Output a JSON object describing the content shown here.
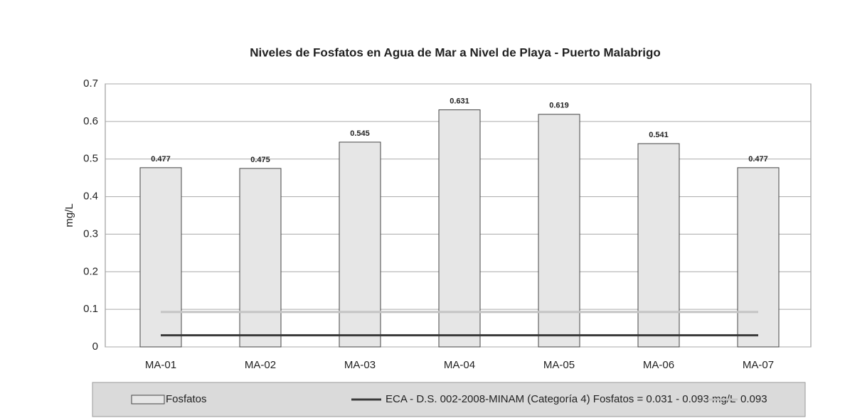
{
  "chart_data": {
    "type": "bar",
    "title": "Niveles de Fosfatos en Agua de Mar a Nivel de Playa - Puerto Malabrigo",
    "y_label": "mg/L",
    "categories": [
      "MA-01",
      "MA-02",
      "MA-03",
      "MA-04",
      "MA-05",
      "MA-06",
      "MA-07"
    ],
    "series": [
      {
        "name": "Fosfatos",
        "type": "bar",
        "color": "#e6e6e6",
        "values": [
          0.477,
          0.475,
          0.545,
          0.631,
          0.619,
          0.541,
          0.477
        ]
      },
      {
        "name": "ECA - D.S. 002-2008-MINAM (Categoría 4) Fosfatos = 0.031 - 0.093 mg/L",
        "type": "line",
        "color": "#3a3a3a",
        "values": [
          0.031,
          0.031,
          0.031,
          0.031,
          0.031,
          0.031,
          0.031
        ]
      },
      {
        "name": "0.093",
        "type": "line",
        "color": "#c4c4c4",
        "values": [
          0.093,
          0.093,
          0.093,
          0.093,
          0.093,
          0.093,
          0.093
        ]
      }
    ],
    "ylim": [
      0,
      0.7
    ],
    "yticks": [
      0,
      0.1,
      0.2,
      0.3,
      0.4,
      0.5,
      0.6,
      0.7
    ],
    "grid": true,
    "legend": "bottom"
  }
}
